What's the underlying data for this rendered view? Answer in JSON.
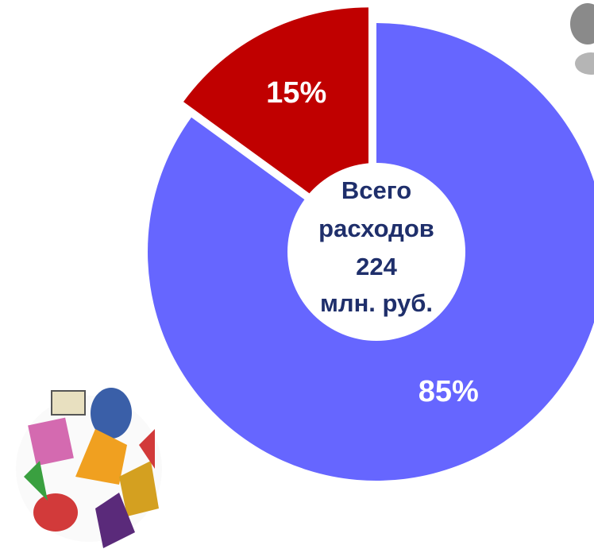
{
  "chart_data": {
    "type": "donut",
    "values": [
      15,
      85
    ],
    "value_labels": [
      "15%",
      "85%"
    ],
    "colors": [
      "#c00000",
      "#6666ff"
    ],
    "center_text": [
      "Всего",
      "расходов",
      "224",
      "млн. руб."
    ]
  }
}
